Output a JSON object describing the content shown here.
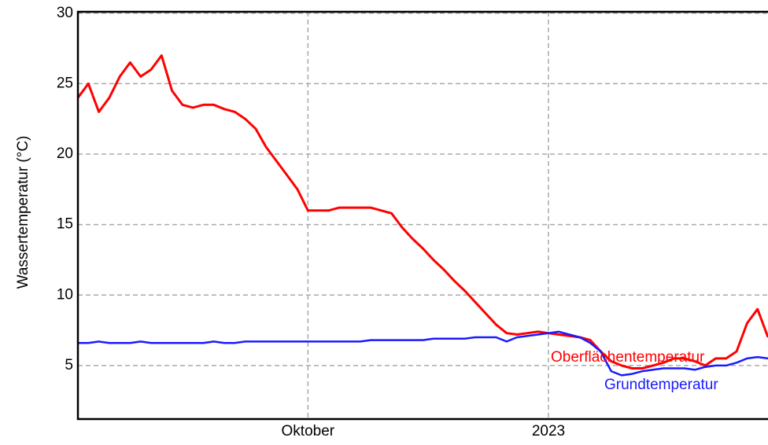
{
  "chart_data": {
    "type": "line",
    "y_label": "Wassertemperatur (°C)",
    "categories": [
      null,
      null,
      null,
      null,
      null,
      null,
      null,
      null,
      null,
      null,
      null,
      null,
      null,
      null,
      null,
      null,
      null,
      null,
      null,
      null,
      null,
      null,
      "Oktober",
      null,
      null,
      null,
      null,
      null,
      null,
      null,
      null,
      null,
      null,
      null,
      null,
      null,
      null,
      null,
      null,
      null,
      null,
      null,
      null,
      null,
      null,
      "2023",
      null,
      null,
      null,
      null,
      null,
      null,
      null,
      null,
      null,
      null,
      null,
      null,
      null,
      null,
      null,
      null,
      null,
      null,
      null,
      null,
      null
    ],
    "series": [
      {
        "name": "Oberflächentemperatur",
        "color": "#ff0000",
        "values": [
          24,
          25,
          23,
          24,
          25.5,
          26.5,
          25.5,
          26,
          27,
          24.5,
          23.5,
          23.3,
          23.5,
          23.5,
          23.2,
          23,
          22.5,
          21.8,
          20.5,
          19.5,
          18.5,
          17.5,
          16,
          16,
          16,
          16.2,
          16.2,
          16.2,
          16.2,
          16,
          15.8,
          14.8,
          14,
          13.3,
          12.5,
          11.8,
          11,
          10.3,
          9.5,
          8.7,
          7.9,
          7.3,
          7.2,
          7.3,
          7.4,
          7.3,
          7.2,
          7.1,
          7,
          6.8,
          6,
          5.3,
          5,
          4.8,
          4.8,
          5,
          5.2,
          5.5,
          5.5,
          5.3,
          5,
          5.5,
          5.5,
          6,
          8,
          9,
          7
        ]
      },
      {
        "name": "Grundtemperatur",
        "color": "#1a1aff",
        "values": [
          6.6,
          6.6,
          6.7,
          6.6,
          6.6,
          6.6,
          6.7,
          6.6,
          6.6,
          6.6,
          6.6,
          6.6,
          6.6,
          6.7,
          6.6,
          6.6,
          6.7,
          6.7,
          6.7,
          6.7,
          6.7,
          6.7,
          6.7,
          6.7,
          6.7,
          6.7,
          6.7,
          6.7,
          6.8,
          6.8,
          6.8,
          6.8,
          6.8,
          6.8,
          6.9,
          6.9,
          6.9,
          6.9,
          7,
          7,
          7,
          6.7,
          7,
          7.1,
          7.2,
          7.3,
          7.4,
          7.2,
          7,
          6.6,
          6,
          4.6,
          4.3,
          4.4,
          4.6,
          4.7,
          4.8,
          4.8,
          4.8,
          4.7,
          4.9,
          5,
          5,
          5.2,
          5.5,
          5.6,
          5.5
        ]
      }
    ],
    "ylim": [
      1.2,
      30.1
    ],
    "yticks": [
      5,
      10,
      15,
      20,
      25,
      30
    ],
    "grid": true
  }
}
